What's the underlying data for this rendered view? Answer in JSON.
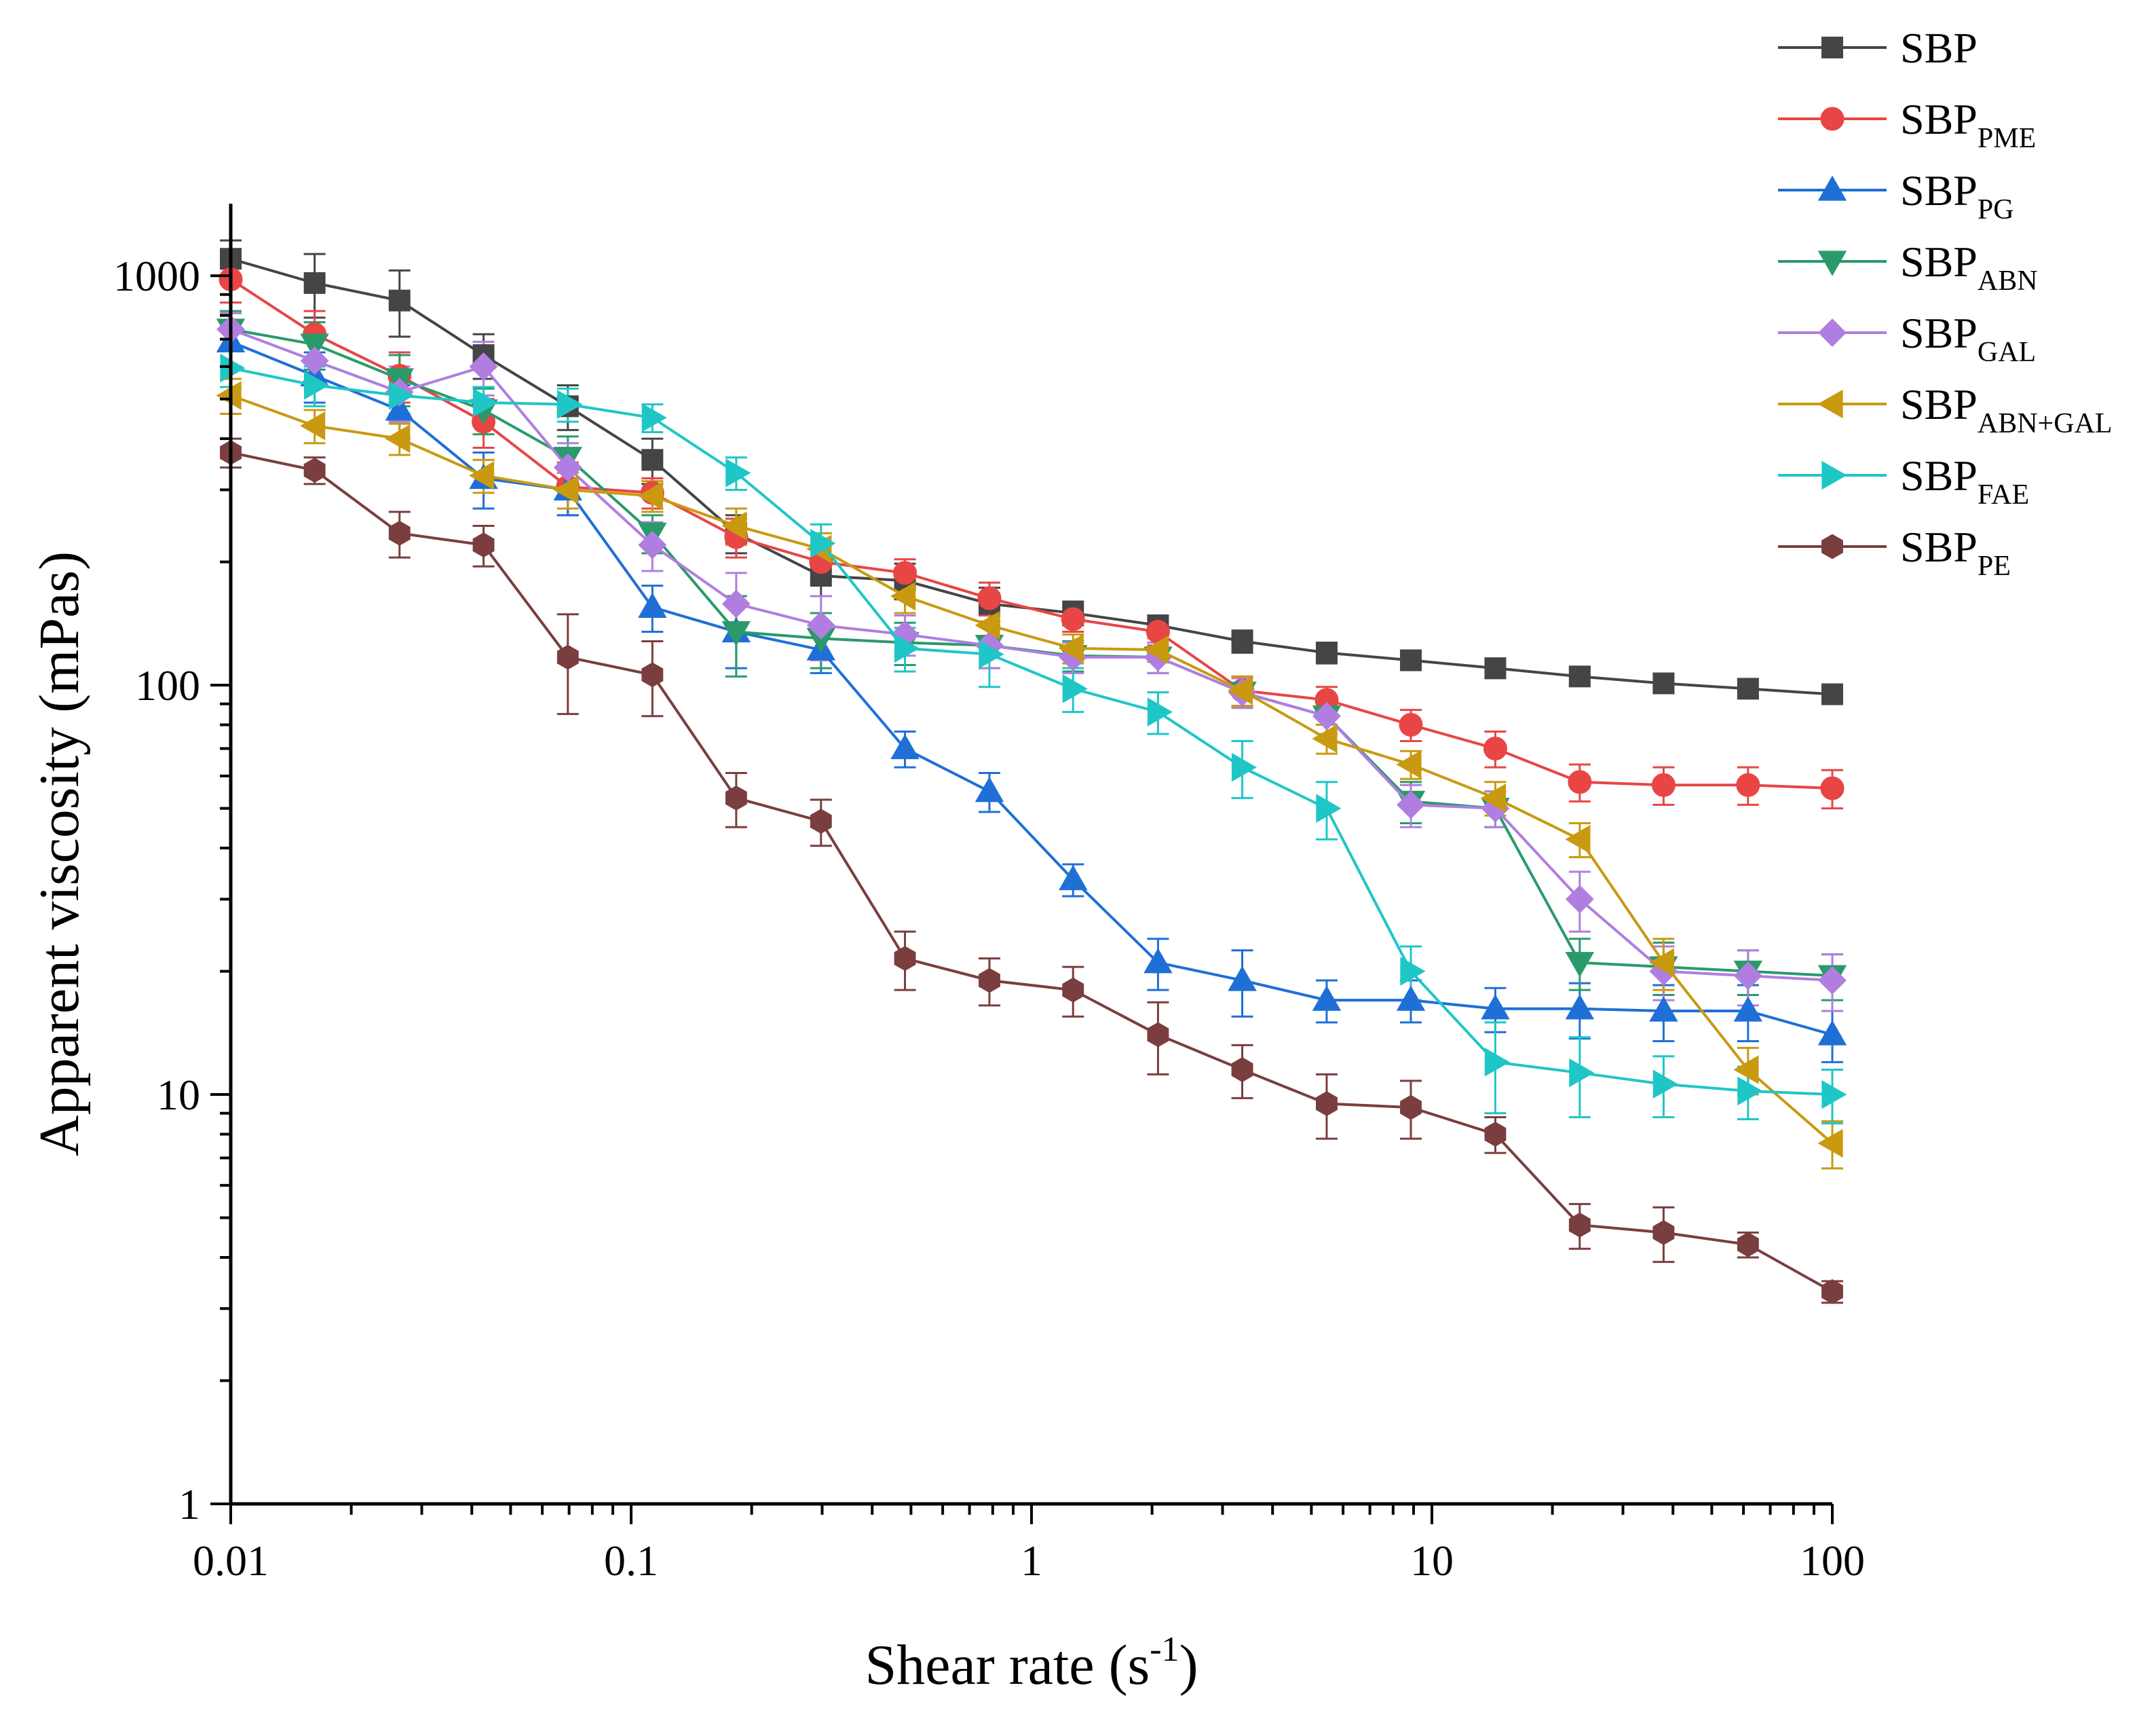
{
  "chart_data": {
    "type": "line",
    "title": "",
    "xlabel": "Shear rate (s",
    "xlabel_sup": "-1",
    "xlabel_close": ")",
    "ylabel": "Apparent viscosity (mPas)",
    "xscale": "log",
    "yscale": "log",
    "xlim": [
      0.01,
      100
    ],
    "ylim": [
      1,
      1500
    ],
    "x_ticks": [
      {
        "value": 0.01,
        "label": "0.01"
      },
      {
        "value": 0.1,
        "label": "0.1"
      },
      {
        "value": 1,
        "label": "1"
      },
      {
        "value": 10,
        "label": "10"
      },
      {
        "value": 100,
        "label": "100"
      }
    ],
    "y_ticks": [
      {
        "value": 1,
        "label": "1"
      },
      {
        "value": 10,
        "label": "10"
      },
      {
        "value": 100,
        "label": "100"
      },
      {
        "value": 1000,
        "label": "1000"
      }
    ],
    "legend_position": "top-right",
    "x": [
      0.01,
      0.0162,
      0.0264,
      0.0428,
      0.0695,
      0.113,
      0.183,
      0.298,
      0.483,
      0.785,
      1.27,
      2.07,
      3.36,
      5.46,
      8.86,
      14.4,
      23.4,
      37.9,
      61.6,
      100
    ],
    "series": [
      {
        "name": "SBP",
        "sub": "",
        "color": "#454545",
        "marker": "square",
        "values": [
          1100,
          960,
          870,
          640,
          480,
          355,
          235,
          185,
          180,
          158,
          150,
          140,
          128,
          120,
          115,
          110,
          105,
          101,
          98,
          95
        ],
        "errors": [
          120,
          170,
          160,
          80,
          60,
          45,
          25,
          20,
          18,
          15,
          10,
          8,
          8,
          7,
          6,
          6,
          5,
          5,
          5,
          5
        ]
      },
      {
        "name": "SBP",
        "sub": "PME",
        "color": "#e84545",
        "marker": "circle",
        "values": [
          980,
          720,
          570,
          440,
          305,
          295,
          230,
          200,
          188,
          163,
          145,
          135,
          97,
          92,
          80,
          70,
          58,
          57,
          57,
          56
        ],
        "errors": [
          120,
          100,
          80,
          60,
          45,
          25,
          25,
          20,
          15,
          15,
          10,
          10,
          8,
          7,
          7,
          7,
          6,
          6,
          6,
          6
        ]
      },
      {
        "name": "SBP",
        "sub": "PG",
        "color": "#1f6fd6",
        "marker": "triangle-up",
        "values": [
          690,
          570,
          470,
          320,
          300,
          155,
          135,
          122,
          70,
          55,
          33.5,
          21,
          19,
          17,
          17,
          16.2,
          16.2,
          16,
          16,
          14
        ],
        "errors": [
          90,
          80,
          70,
          50,
          40,
          20,
          25,
          15,
          7,
          6,
          3,
          3,
          3.5,
          2,
          2,
          2,
          2.5,
          2.5,
          2.5,
          2
        ]
      },
      {
        "name": "SBP",
        "sub": "ABN",
        "color": "#2a9a6a",
        "marker": "triangle-down",
        "values": [
          740,
          680,
          560,
          470,
          360,
          235,
          135,
          130,
          127,
          125,
          118,
          117,
          96,
          84,
          52,
          50,
          21,
          20.5,
          20,
          19.5
        ],
        "errors": [
          80,
          90,
          80,
          60,
          45,
          25,
          30,
          20,
          15,
          15,
          10,
          10,
          8,
          8,
          6,
          5,
          3,
          3,
          2.5,
          2.5
        ]
      },
      {
        "name": "SBP",
        "sub": "GAL",
        "color": "#b07ee0",
        "marker": "diamond",
        "values": [
          740,
          620,
          520,
          600,
          340,
          220,
          158,
          140,
          133,
          125,
          117,
          117,
          96,
          84,
          51,
          50,
          30,
          20,
          19.5,
          19
        ],
        "errors": [
          70,
          80,
          80,
          90,
          50,
          30,
          30,
          25,
          15,
          15,
          10,
          10,
          8,
          8,
          6,
          5,
          5,
          3,
          3,
          3
        ]
      },
      {
        "name": "SBP",
        "sub": "ABN+GAL",
        "color": "#c99a10",
        "marker": "triangle-left",
        "values": [
          510,
          430,
          400,
          325,
          300,
          290,
          245,
          215,
          165,
          140,
          123,
          122,
          97,
          74,
          64,
          53,
          42,
          21,
          11.5,
          7.6
        ],
        "errors": [
          50,
          40,
          35,
          30,
          30,
          25,
          25,
          20,
          15,
          12,
          10,
          8,
          8,
          6,
          5,
          5,
          4,
          3,
          1.5,
          1
        ]
      },
      {
        "name": "SBP",
        "sub": "FAE",
        "color": "#1fc6c6",
        "marker": "triangle-right",
        "values": [
          595,
          540,
          510,
          490,
          485,
          450,
          330,
          222,
          123,
          119,
          98,
          86,
          63,
          50,
          20,
          12,
          11.3,
          10.6,
          10.2,
          10
        ],
        "errors": [
          60,
          60,
          50,
          45,
          45,
          35,
          30,
          25,
          15,
          20,
          12,
          10,
          10,
          8,
          3,
          3,
          2.5,
          1.8,
          1.5,
          1.5
        ]
      },
      {
        "name": "SBP",
        "sub": "PE",
        "color": "#7a3e3e",
        "marker": "hexagon",
        "values": [
          370,
          335,
          235,
          220,
          117,
          106,
          53,
          46.5,
          21.5,
          19,
          18,
          14,
          11.5,
          9.5,
          9.3,
          8,
          4.8,
          4.6,
          4.3,
          3.3
        ],
        "errors": [
          30,
          25,
          30,
          25,
          32,
          22,
          8,
          6,
          3.5,
          2.5,
          2.5,
          2.8,
          1.7,
          1.7,
          1.5,
          0.8,
          0.6,
          0.7,
          0.3,
          0.2
        ]
      }
    ]
  }
}
